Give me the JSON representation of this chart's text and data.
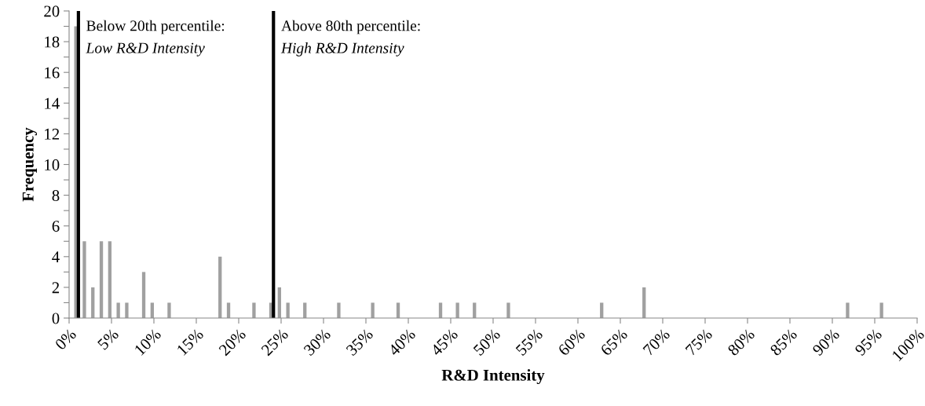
{
  "chart_data": {
    "type": "bar",
    "xlabel": "R&D Intensity",
    "ylabel": "Frequency",
    "color": "#a0a0a0",
    "x": [
      0.8,
      1.8,
      2.8,
      3.8,
      4.8,
      5.8,
      6.8,
      8.8,
      9.8,
      11.8,
      17.8,
      18.8,
      21.8,
      23.8,
      24.8,
      25.8,
      27.8,
      31.8,
      35.8,
      38.8,
      43.8,
      45.8,
      47.8,
      51.8,
      62.8,
      67.8,
      91.8,
      95.8
    ],
    "values": [
      19,
      5,
      2,
      5,
      5,
      1,
      1,
      3,
      1,
      1,
      4,
      1,
      1,
      1,
      2,
      1,
      1,
      1,
      1,
      1,
      1,
      1,
      1,
      1,
      1,
      2,
      1,
      1
    ],
    "xlim": [
      0,
      100
    ],
    "xticks": [
      {
        "value": 0,
        "label": "0%"
      },
      {
        "value": 5,
        "label": "5%"
      },
      {
        "value": 10,
        "label": "10%"
      },
      {
        "value": 15,
        "label": "15%"
      },
      {
        "value": 20,
        "label": "20%"
      },
      {
        "value": 25,
        "label": "25%"
      },
      {
        "value": 30,
        "label": "30%"
      },
      {
        "value": 35,
        "label": "35%"
      },
      {
        "value": 40,
        "label": "40%"
      },
      {
        "value": 45,
        "label": "45%"
      },
      {
        "value": 50,
        "label": "50%"
      },
      {
        "value": 55,
        "label": "55%"
      },
      {
        "value": 60,
        "label": "60%"
      },
      {
        "value": 65,
        "label": "65%"
      },
      {
        "value": 70,
        "label": "70%"
      },
      {
        "value": 75,
        "label": "75%"
      },
      {
        "value": 80,
        "label": "80%"
      },
      {
        "value": 85,
        "label": "85%"
      },
      {
        "value": 90,
        "label": "90%"
      },
      {
        "value": 95,
        "label": "95%"
      },
      {
        "value": 100,
        "label": "100%"
      }
    ],
    "ylim": [
      0,
      20
    ],
    "yticks": [
      0,
      {
        "value": 1,
        "label": null
      },
      2,
      {
        "value": 3,
        "label": null
      },
      4,
      {
        "value": 5,
        "label": null
      },
      6,
      {
        "value": 7,
        "label": null
      },
      8,
      {
        "value": 9,
        "label": null
      },
      10,
      {
        "value": 11,
        "label": null
      },
      12,
      {
        "value": 13,
        "label": null
      },
      14,
      {
        "value": 15,
        "label": null
      },
      16,
      {
        "value": 17,
        "label": null
      },
      18,
      {
        "value": 19,
        "label": null
      },
      20
    ],
    "grid": false,
    "legend": false,
    "ref_lines": [
      {
        "axis": "x",
        "value": 1.1,
        "label": "Below 20th percentile:\nLow R&D Intensity",
        "color": "#000000"
      },
      {
        "axis": "x",
        "value": 24.1,
        "label": "Above 80th percentile:\nHigh R&D Intensity",
        "color": "#000000"
      }
    ]
  }
}
